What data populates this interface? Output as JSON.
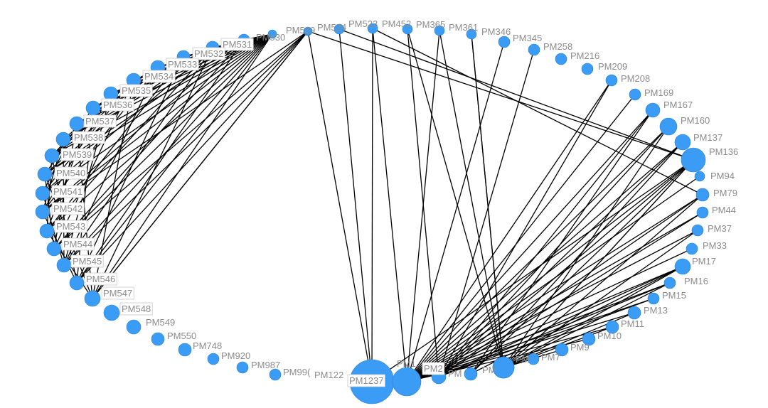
{
  "graph": {
    "node_color": "#3b9cf5",
    "edge_color": "#000000",
    "label_color": "#8c8c8c",
    "nodes": [
      {
        "id": "PM530",
        "label": "PM530"
      },
      {
        "id": "PM531",
        "label": "PM531"
      },
      {
        "id": "PM532",
        "label": "PM532"
      },
      {
        "id": "PM533",
        "label": "PM533"
      },
      {
        "id": "PM534",
        "label": "PM534"
      },
      {
        "id": "PM535",
        "label": "PM535"
      },
      {
        "id": "PM536",
        "label": "PM536"
      },
      {
        "id": "PM537",
        "label": "PM537"
      },
      {
        "id": "PM538",
        "label": "PM538"
      },
      {
        "id": "PM539",
        "label": "PM539"
      },
      {
        "id": "PM540",
        "label": "PM540"
      },
      {
        "id": "PM541",
        "label": "PM541"
      },
      {
        "id": "PM542",
        "label": "PM542"
      },
      {
        "id": "PM543",
        "label": "PM543"
      },
      {
        "id": "PM544",
        "label": "PM544"
      },
      {
        "id": "PM545",
        "label": "PM545"
      },
      {
        "id": "PM546",
        "label": "PM546"
      },
      {
        "id": "PM547",
        "label": "PM547"
      },
      {
        "id": "PM548",
        "label": "PM548"
      },
      {
        "id": "PM549",
        "label": "PM549"
      },
      {
        "id": "PM550",
        "label": "PM550"
      },
      {
        "id": "PM748",
        "label": "PM748"
      },
      {
        "id": "PM920",
        "label": "PM920"
      },
      {
        "id": "PM987",
        "label": "PM987"
      },
      {
        "id": "PM99",
        "label": "PM99("
      },
      {
        "id": "PM122",
        "label": "PM122"
      },
      {
        "id": "PM1237",
        "label": "PM1237"
      },
      {
        "id": "PM1",
        "label": "PM1"
      },
      {
        "id": "PM2",
        "label": "PM2"
      },
      {
        "id": "PMa",
        "label": "PM"
      },
      {
        "id": "PMb",
        "label": "PM"
      },
      {
        "id": "PMc",
        "label": "PM"
      },
      {
        "id": "PM7",
        "label": "PM7"
      },
      {
        "id": "PM9",
        "label": "PM9"
      },
      {
        "id": "PM10",
        "label": "PM10"
      },
      {
        "id": "PM11",
        "label": "PM11"
      },
      {
        "id": "PM13",
        "label": "PM13"
      },
      {
        "id": "PM15",
        "label": "PM15"
      },
      {
        "id": "PM16",
        "label": "PM16"
      },
      {
        "id": "PM17",
        "label": "PM17"
      },
      {
        "id": "PM33",
        "label": "PM33"
      },
      {
        "id": "PM37",
        "label": "PM37"
      },
      {
        "id": "PM44",
        "label": "PM44"
      },
      {
        "id": "PM79",
        "label": "PM79"
      },
      {
        "id": "PM94",
        "label": "PM94"
      },
      {
        "id": "PM136",
        "label": "PM136"
      },
      {
        "id": "PM137",
        "label": "PM137"
      },
      {
        "id": "PM160",
        "label": "PM160"
      },
      {
        "id": "PM167",
        "label": "PM167"
      },
      {
        "id": "PM169",
        "label": "PM169"
      },
      {
        "id": "PM208",
        "label": "PM208"
      },
      {
        "id": "PM209",
        "label": "PM209"
      },
      {
        "id": "PM216",
        "label": "PM216"
      },
      {
        "id": "PM258",
        "label": "PM258"
      },
      {
        "id": "PM345",
        "label": "PM345"
      },
      {
        "id": "PM346",
        "label": "PM346"
      },
      {
        "id": "PM361",
        "label": "PM361"
      },
      {
        "id": "PM365",
        "label": "PM365"
      },
      {
        "id": "PM452",
        "label": "PM452"
      },
      {
        "id": "PM523",
        "label": "PM523"
      },
      {
        "id": "PM524",
        "label": "PM524"
      },
      {
        "id": "PM529",
        "label": "PM529"
      }
    ],
    "edges": [
      [
        "PM530",
        "PM531"
      ],
      [
        "PM530",
        "PM532"
      ],
      [
        "PM530",
        "PM533"
      ],
      [
        "PM530",
        "PM534"
      ],
      [
        "PM530",
        "PM535"
      ],
      [
        "PM530",
        "PM536"
      ],
      [
        "PM530",
        "PM537"
      ],
      [
        "PM530",
        "PM538"
      ],
      [
        "PM530",
        "PM539"
      ],
      [
        "PM530",
        "PM540"
      ],
      [
        "PM530",
        "PM541"
      ],
      [
        "PM530",
        "PM542"
      ],
      [
        "PM530",
        "PM543"
      ],
      [
        "PM530",
        "PM544"
      ],
      [
        "PM530",
        "PM545"
      ],
      [
        "PM530",
        "PM546"
      ],
      [
        "PM530",
        "PM547"
      ],
      [
        "PM530",
        "PM548"
      ],
      [
        "PM531",
        "PM533"
      ],
      [
        "PM531",
        "PM535"
      ],
      [
        "PM531",
        "PM537"
      ],
      [
        "PM531",
        "PM539"
      ],
      [
        "PM531",
        "PM541"
      ],
      [
        "PM531",
        "PM543"
      ],
      [
        "PM531",
        "PM545"
      ],
      [
        "PM531",
        "PM547"
      ],
      [
        "PM532",
        "PM534"
      ],
      [
        "PM532",
        "PM536"
      ],
      [
        "PM532",
        "PM538"
      ],
      [
        "PM532",
        "PM540"
      ],
      [
        "PM532",
        "PM542"
      ],
      [
        "PM532",
        "PM544"
      ],
      [
        "PM532",
        "PM546"
      ],
      [
        "PM532",
        "PM548"
      ],
      [
        "PM533",
        "PM535"
      ],
      [
        "PM533",
        "PM538"
      ],
      [
        "PM533",
        "PM541"
      ],
      [
        "PM533",
        "PM544"
      ],
      [
        "PM533",
        "PM547"
      ],
      [
        "PM534",
        "PM537"
      ],
      [
        "PM534",
        "PM540"
      ],
      [
        "PM534",
        "PM543"
      ],
      [
        "PM534",
        "PM546"
      ],
      [
        "PM535",
        "PM539"
      ],
      [
        "PM535",
        "PM542"
      ],
      [
        "PM535",
        "PM545"
      ],
      [
        "PM535",
        "PM548"
      ],
      [
        "PM536",
        "PM540"
      ],
      [
        "PM536",
        "PM543"
      ],
      [
        "PM536",
        "PM546"
      ],
      [
        "PM537",
        "PM541"
      ],
      [
        "PM537",
        "PM544"
      ],
      [
        "PM537",
        "PM547"
      ],
      [
        "PM538",
        "PM542"
      ],
      [
        "PM538",
        "PM545"
      ],
      [
        "PM538",
        "PM548"
      ],
      [
        "PM539",
        "PM543"
      ],
      [
        "PM539",
        "PM546"
      ],
      [
        "PM540",
        "PM544"
      ],
      [
        "PM540",
        "PM547"
      ],
      [
        "PM541",
        "PM545"
      ],
      [
        "PM541",
        "PM548"
      ],
      [
        "PM542",
        "PM546"
      ],
      [
        "PM543",
        "PM547"
      ],
      [
        "PM544",
        "PM548"
      ],
      [
        "PM524",
        "PM545"
      ],
      [
        "PM524",
        "PM546"
      ],
      [
        "PM524",
        "PM547"
      ],
      [
        "PM524",
        "PM548"
      ],
      [
        "PM529",
        "PM543"
      ],
      [
        "PM529",
        "PM548"
      ],
      [
        "PM524",
        "PM1237"
      ],
      [
        "PM523",
        "PM1237"
      ],
      [
        "PM452",
        "PM1237"
      ],
      [
        "PM452",
        "PM1"
      ],
      [
        "PM365",
        "PM2"
      ],
      [
        "PM361",
        "PM1"
      ],
      [
        "PM361",
        "PMc"
      ],
      [
        "PM365",
        "PMc"
      ],
      [
        "PM346",
        "PMc"
      ],
      [
        "PM345",
        "PM1"
      ],
      [
        "PM258",
        "PM2"
      ],
      [
        "PM346",
        "PMb"
      ],
      [
        "PM523",
        "PM136"
      ],
      [
        "PM452",
        "PM79"
      ],
      [
        "PM524",
        "PM136"
      ],
      [
        "PM208",
        "PM1"
      ],
      [
        "PM208",
        "PM2"
      ],
      [
        "PM169",
        "PM1"
      ],
      [
        "PM167",
        "PM1"
      ],
      [
        "PM167",
        "PM2"
      ],
      [
        "PM167",
        "PMa"
      ],
      [
        "PM160",
        "PM1"
      ],
      [
        "PM160",
        "PM2"
      ],
      [
        "PM160",
        "PMc"
      ],
      [
        "PM137",
        "PM1"
      ],
      [
        "PM137",
        "PM2"
      ],
      [
        "PM137",
        "PMa"
      ],
      [
        "PM136",
        "PM1"
      ],
      [
        "PM136",
        "PM2"
      ],
      [
        "PM136",
        "PMa"
      ],
      [
        "PM136",
        "PMb"
      ],
      [
        "PM136",
        "PMc"
      ],
      [
        "PM136",
        "PM1237"
      ],
      [
        "PM94",
        "PM1"
      ],
      [
        "PM79",
        "PM1"
      ],
      [
        "PM79",
        "PM2"
      ],
      [
        "PM79",
        "PMc"
      ],
      [
        "PM44",
        "PM1"
      ],
      [
        "PM44",
        "PM2"
      ],
      [
        "PM37",
        "PM1"
      ],
      [
        "PM37",
        "PMb"
      ],
      [
        "PM33",
        "PM1"
      ],
      [
        "PM17",
        "PM1"
      ],
      [
        "PM17",
        "PM2"
      ],
      [
        "PM17",
        "PMa"
      ],
      [
        "PM17",
        "PMc"
      ],
      [
        "PM16",
        "PM1"
      ],
      [
        "PM16",
        "PM2"
      ],
      [
        "PM16",
        "PMc"
      ],
      [
        "PM15",
        "PM1"
      ],
      [
        "PM15",
        "PM2"
      ],
      [
        "PM13",
        "PM1"
      ],
      [
        "PM13",
        "PMc"
      ],
      [
        "PM11",
        "PM1"
      ],
      [
        "PM11",
        "PMc"
      ],
      [
        "PM10",
        "PM1"
      ],
      [
        "PM9",
        "PMc"
      ],
      [
        "PM7",
        "PMc"
      ]
    ]
  }
}
